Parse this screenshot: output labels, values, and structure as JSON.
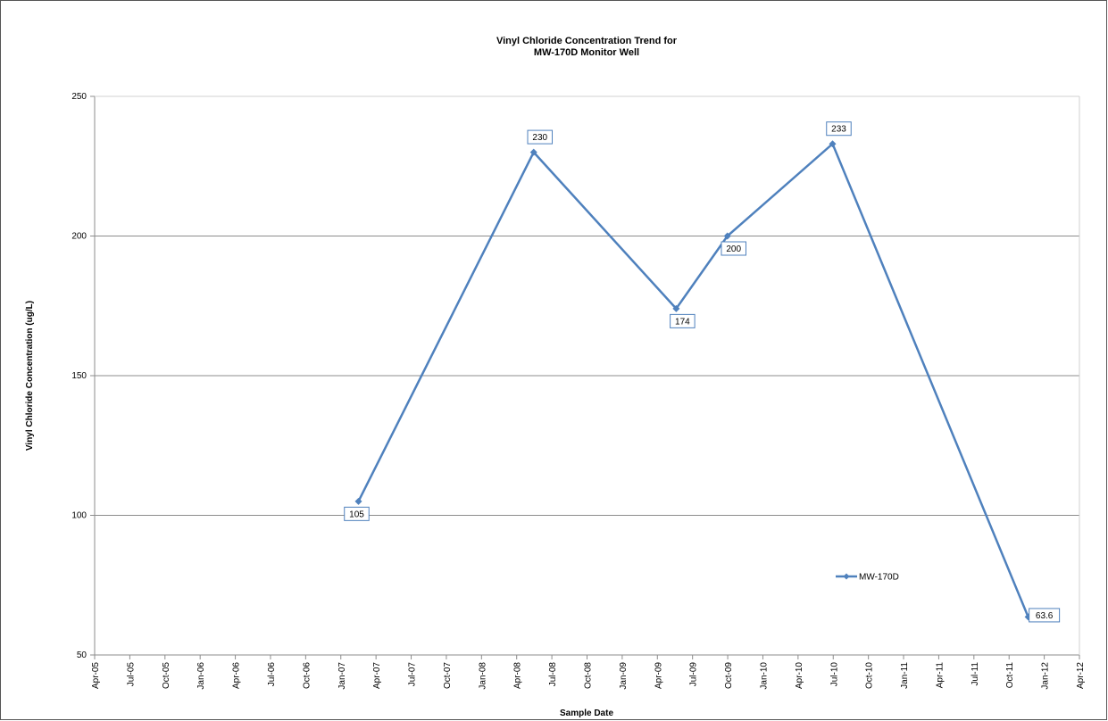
{
  "chart_data": {
    "type": "line",
    "title_lines": [
      "Vinyl Chloride Concentration Trend for",
      "MW-170D Monitor Well"
    ],
    "xlabel": "Sample Date",
    "ylabel": "Vinyl Chloride Concentration (ug/L)",
    "ylim": [
      50,
      250
    ],
    "yticks": [
      50,
      100,
      150,
      200,
      250
    ],
    "xlim": [
      "2005-04-01",
      "2012-04-01"
    ],
    "xticks": [
      "Apr-05",
      "Jul-05",
      "Oct-05",
      "Jan-06",
      "Apr-06",
      "Jul-06",
      "Oct-06",
      "Jan-07",
      "Apr-07",
      "Jul-07",
      "Oct-07",
      "Jan-08",
      "Apr-08",
      "Jul-08",
      "Oct-08",
      "Jan-09",
      "Apr-09",
      "Jul-09",
      "Oct-09",
      "Jan-10",
      "Apr-10",
      "Jul-10",
      "Oct-10",
      "Jan-11",
      "Apr-11",
      "Jul-11",
      "Oct-11",
      "Jan-12",
      "Apr-12"
    ],
    "grid": "horizontal",
    "legend_position": "lower-right inside plot",
    "series": [
      {
        "name": "MW-170D",
        "color": "#4f81bd",
        "points": [
          {
            "x": "2007-02-15",
            "y": 105,
            "label": "105"
          },
          {
            "x": "2008-05-15",
            "y": 230,
            "label": "230"
          },
          {
            "x": "2009-05-20",
            "y": 174,
            "label": "174"
          },
          {
            "x": "2009-09-30",
            "y": 200,
            "label": "200"
          },
          {
            "x": "2010-06-30",
            "y": 233,
            "label": "233"
          },
          {
            "x": "2011-11-20",
            "y": 63.6,
            "label": "63.6"
          }
        ]
      }
    ]
  }
}
